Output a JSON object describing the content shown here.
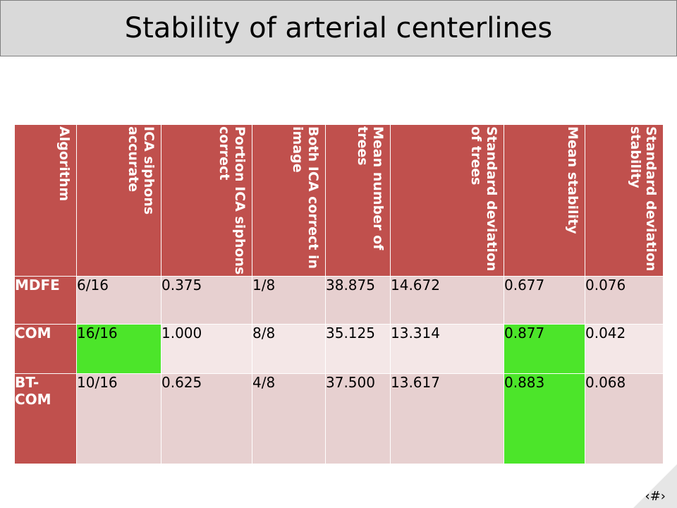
{
  "title": "Stability of arterial centerlines",
  "table": {
    "headers": [
      "Algorithm",
      "ICA siphons accurate",
      "Portion ICA siphons correct",
      "Both ICA correct in image",
      "Mean number of trees",
      "Standard deviation of trees",
      "Mean stability",
      "Standard deviation stability"
    ],
    "rows": [
      {
        "name": "MDFE",
        "cells": [
          "6/16",
          "0.375",
          "1/8",
          "38.875",
          "14.672",
          "0.677",
          "0.076"
        ]
      },
      {
        "name": "COM",
        "cells": [
          "16/16",
          "1.000",
          "8/8",
          "35.125",
          "13.314",
          "0.877",
          "0.042"
        ]
      },
      {
        "name": "BT-\nCOM",
        "cells": [
          "10/16",
          "0.625",
          "4/8",
          "37.500",
          "13.617",
          "0.883",
          "0.068"
        ]
      }
    ],
    "highlight_color": "#4ce52a",
    "header_color": "#c0504d"
  },
  "slide_number": "‹#›"
}
